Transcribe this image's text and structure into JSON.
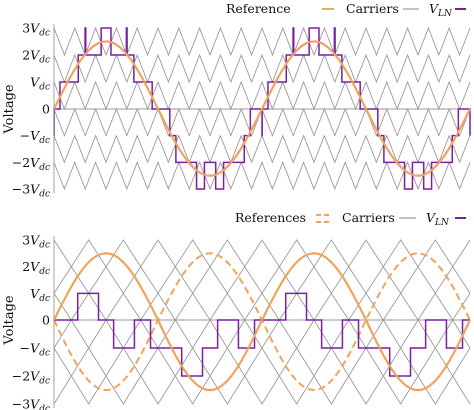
{
  "colors": {
    "reference": "#f0a35a",
    "carrier": "#9a9a9a",
    "vln": "#7a1fa2",
    "zero_line": "#9a9a9a",
    "text": "#111111"
  },
  "chart_data": [
    {
      "type": "line",
      "title": "",
      "xlabel": "",
      "ylabel": "Voltage",
      "ylim": [
        -3.3,
        3.3
      ],
      "xlim": [
        0,
        2
      ],
      "yticks": [
        {
          "value": 3,
          "coef": "3",
          "sym": "V",
          "sub": "dc"
        },
        {
          "value": 2,
          "coef": "2",
          "sym": "V",
          "sub": "dc"
        },
        {
          "value": 1,
          "coef": "",
          "sym": "V",
          "sub": "dc"
        },
        {
          "value": 0,
          "coef": "0",
          "sym": "",
          "sub": ""
        },
        {
          "value": -1,
          "coef": "−",
          "sym": "V",
          "sub": "dc"
        },
        {
          "value": -2,
          "coef": "−2",
          "sym": "V",
          "sub": "dc"
        },
        {
          "value": -3,
          "coef": "−3",
          "sym": "V",
          "sub": "dc"
        }
      ],
      "legend": {
        "placement": "top-right",
        "entries": [
          {
            "label": "Reference",
            "sym": "",
            "sub": "",
            "style": "reference-solid"
          },
          {
            "label": "Carriers",
            "sym": "",
            "sub": "",
            "style": "carrier"
          },
          {
            "label": "",
            "sym": "V",
            "sub": "LN",
            "style": "vln"
          }
        ]
      },
      "series": [
        {
          "kind": "reference",
          "amplitude": 2.5,
          "cycles": 2,
          "phase_shift": 0
        },
        {
          "kind": "carriers",
          "levels": 6,
          "carrier_cycles": 20,
          "arrangement": "level-shifted"
        },
        {
          "kind": "vln",
          "output": "staircase"
        }
      ]
    },
    {
      "type": "line",
      "title": "",
      "xlabel": "",
      "ylabel": "Voltage",
      "ylim": [
        -3.3,
        3.3
      ],
      "xlim": [
        0,
        2
      ],
      "yticks": [
        {
          "value": 3,
          "coef": "3",
          "sym": "V",
          "sub": "dc"
        },
        {
          "value": 2,
          "coef": "2",
          "sym": "V",
          "sub": "dc"
        },
        {
          "value": 1,
          "coef": "",
          "sym": "V",
          "sub": "dc"
        },
        {
          "value": 0,
          "coef": "0",
          "sym": "",
          "sub": ""
        },
        {
          "value": -1,
          "coef": "−",
          "sym": "V",
          "sub": "dc"
        },
        {
          "value": -2,
          "coef": "−2",
          "sym": "V",
          "sub": "dc"
        },
        {
          "value": -3,
          "coef": "−3",
          "sym": "V",
          "sub": "dc"
        }
      ],
      "legend": {
        "placement": "top-right",
        "entries": [
          {
            "label": "References",
            "sym": "",
            "sub": "",
            "style": "reference-dual"
          },
          {
            "label": "Carriers",
            "sym": "",
            "sub": "",
            "style": "carrier"
          },
          {
            "label": "",
            "sym": "V",
            "sub": "LN",
            "style": "vln"
          }
        ]
      },
      "series": [
        {
          "kind": "reference",
          "amplitude": 2.5,
          "cycles": 2,
          "phase_shift": 0
        },
        {
          "kind": "reference-dashed",
          "amplitude": 2.5,
          "cycles": 2,
          "phase_shift": 180
        },
        {
          "kind": "carriers",
          "cells": 3,
          "carrier_cycles": 4,
          "arrangement": "phase-shifted"
        },
        {
          "kind": "vln",
          "output": "staircase"
        }
      ]
    }
  ]
}
